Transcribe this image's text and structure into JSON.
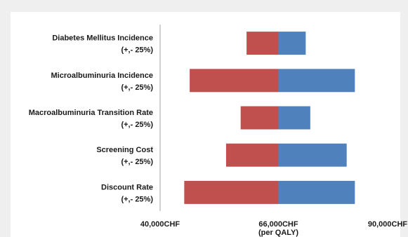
{
  "chart_data": {
    "type": "bar",
    "orientation": "horizontal",
    "chart_style": "tornado",
    "categories": [
      [
        "Diabetes Mellitus Incidence",
        "(+,- 25%)"
      ],
      [
        "Microalbuminuria Incidence",
        "(+,- 25%)"
      ],
      [
        "Macroalbuminuria Transition Rate",
        "(+,- 25%)"
      ],
      [
        "Screening Cost",
        "(+,- 25%)"
      ],
      [
        "Discount Rate",
        "(+,- 25%)"
      ]
    ],
    "base_value": 66000,
    "series": [
      {
        "values": [
          59000,
          46500,
          57700,
          54500,
          45300
        ],
        "color": "#c0504d"
      },
      {
        "values": [
          72000,
          82800,
          73000,
          81000,
          82800
        ],
        "color": "#4f81bd"
      }
    ],
    "xlim": [
      40000,
      90000
    ],
    "x_ticks": [
      {
        "value": 40000,
        "label": "40,000CHF"
      },
      {
        "value": 66000,
        "label": "66,000CHF"
      },
      {
        "value": 90000,
        "label": "90,000CHF"
      }
    ],
    "xlabel": "(per QALY)",
    "grid": false,
    "legend": "none"
  }
}
